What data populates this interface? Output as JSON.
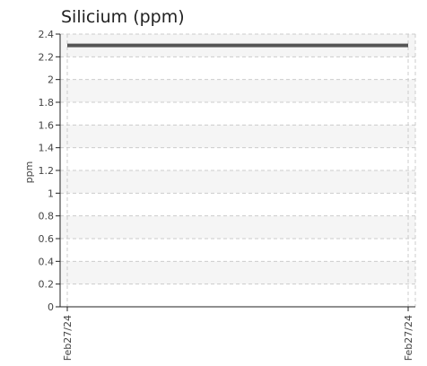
{
  "chart_data": {
    "type": "line",
    "title": "Silicium (ppm)",
    "xlabel": "",
    "ylabel": "ppm",
    "x": [
      "Feb27/24",
      "Feb27/24"
    ],
    "series": [
      {
        "values": [
          2.3,
          2.3
        ]
      }
    ],
    "ylim": [
      0,
      2.4
    ],
    "yticks": [
      "0",
      "0.2",
      "0.4",
      "0.6",
      "0.8",
      "1",
      "1.2",
      "1.4",
      "1.6",
      "1.8",
      "2",
      "2.2",
      "2.4"
    ],
    "grid": true,
    "colors": {
      "line": "#555555",
      "grid": "#cccccc",
      "band": "#f5f5f5",
      "axis": "#222222"
    }
  }
}
